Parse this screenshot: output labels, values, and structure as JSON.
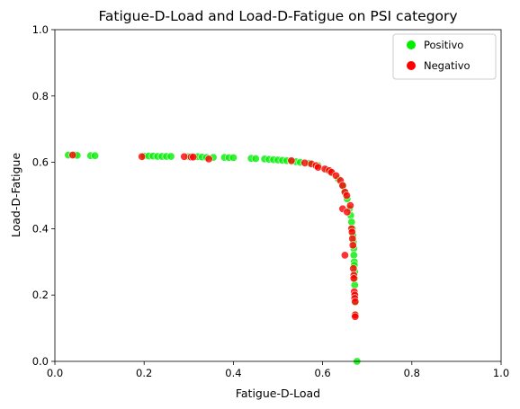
{
  "chart_data": {
    "type": "scatter",
    "title": "Fatigue-D-Load and Load-D-Fatigue on PSI category",
    "xlabel": "Fatigue-D-Load",
    "ylabel": "Load-D-Fatigue",
    "xlim": [
      0,
      1
    ],
    "ylim": [
      0,
      1
    ],
    "x_ticks": [
      "0.0",
      "0.2",
      "0.4",
      "0.6",
      "0.8",
      "1.0"
    ],
    "y_ticks": [
      "0.0",
      "0.2",
      "0.4",
      "0.6",
      "0.8",
      "1.0"
    ],
    "grid": false,
    "legend_position": "upper-right",
    "series": [
      {
        "name": "Positivo",
        "color": "#00ee00",
        "points": [
          [
            0.03,
            0.622
          ],
          [
            0.045,
            0.622
          ],
          [
            0.05,
            0.621
          ],
          [
            0.08,
            0.62
          ],
          [
            0.09,
            0.62
          ],
          [
            0.2,
            0.619
          ],
          [
            0.21,
            0.619
          ],
          [
            0.22,
            0.619
          ],
          [
            0.23,
            0.618
          ],
          [
            0.24,
            0.618
          ],
          [
            0.25,
            0.618
          ],
          [
            0.26,
            0.618
          ],
          [
            0.3,
            0.617
          ],
          [
            0.32,
            0.617
          ],
          [
            0.33,
            0.616
          ],
          [
            0.34,
            0.615
          ],
          [
            0.355,
            0.615
          ],
          [
            0.38,
            0.615
          ],
          [
            0.39,
            0.614
          ],
          [
            0.4,
            0.614
          ],
          [
            0.44,
            0.612
          ],
          [
            0.45,
            0.611
          ],
          [
            0.47,
            0.61
          ],
          [
            0.48,
            0.609
          ],
          [
            0.49,
            0.608
          ],
          [
            0.5,
            0.607
          ],
          [
            0.51,
            0.606
          ],
          [
            0.52,
            0.605
          ],
          [
            0.53,
            0.603
          ],
          [
            0.54,
            0.602
          ],
          [
            0.55,
            0.6
          ],
          [
            0.57,
            0.597
          ],
          [
            0.59,
            0.59
          ],
          [
            0.61,
            0.578
          ],
          [
            0.62,
            0.57
          ],
          [
            0.635,
            0.55
          ],
          [
            0.645,
            0.53
          ],
          [
            0.65,
            0.51
          ],
          [
            0.655,
            0.49
          ],
          [
            0.66,
            0.46
          ],
          [
            0.663,
            0.44
          ],
          [
            0.665,
            0.42
          ],
          [
            0.667,
            0.4
          ],
          [
            0.668,
            0.38
          ],
          [
            0.669,
            0.36
          ],
          [
            0.67,
            0.34
          ],
          [
            0.67,
            0.32
          ],
          [
            0.671,
            0.3
          ],
          [
            0.671,
            0.29
          ],
          [
            0.672,
            0.27
          ],
          [
            0.672,
            0.25
          ],
          [
            0.672,
            0.23
          ],
          [
            0.673,
            0.2
          ],
          [
            0.673,
            0.18
          ],
          [
            0.674,
            0.14
          ],
          [
            0.677,
            0.0
          ]
        ]
      },
      {
        "name": "Negativo",
        "color": "#ff0000",
        "points": [
          [
            0.04,
            0.622
          ],
          [
            0.195,
            0.617
          ],
          [
            0.29,
            0.617
          ],
          [
            0.305,
            0.616
          ],
          [
            0.31,
            0.616
          ],
          [
            0.345,
            0.61
          ],
          [
            0.53,
            0.605
          ],
          [
            0.56,
            0.598
          ],
          [
            0.575,
            0.595
          ],
          [
            0.585,
            0.59
          ],
          [
            0.59,
            0.585
          ],
          [
            0.605,
            0.58
          ],
          [
            0.615,
            0.575
          ],
          [
            0.62,
            0.57
          ],
          [
            0.63,
            0.56
          ],
          [
            0.64,
            0.545
          ],
          [
            0.645,
            0.53
          ],
          [
            0.65,
            0.51
          ],
          [
            0.654,
            0.5
          ],
          [
            0.645,
            0.46
          ],
          [
            0.655,
            0.45
          ],
          [
            0.662,
            0.47
          ],
          [
            0.665,
            0.4
          ],
          [
            0.666,
            0.39
          ],
          [
            0.667,
            0.37
          ],
          [
            0.668,
            0.35
          ],
          [
            0.65,
            0.32
          ],
          [
            0.669,
            0.28
          ],
          [
            0.67,
            0.26
          ],
          [
            0.67,
            0.25
          ],
          [
            0.671,
            0.21
          ],
          [
            0.672,
            0.2
          ],
          [
            0.672,
            0.19
          ],
          [
            0.673,
            0.18
          ],
          [
            0.673,
            0.14
          ],
          [
            0.673,
            0.135
          ]
        ]
      }
    ]
  }
}
